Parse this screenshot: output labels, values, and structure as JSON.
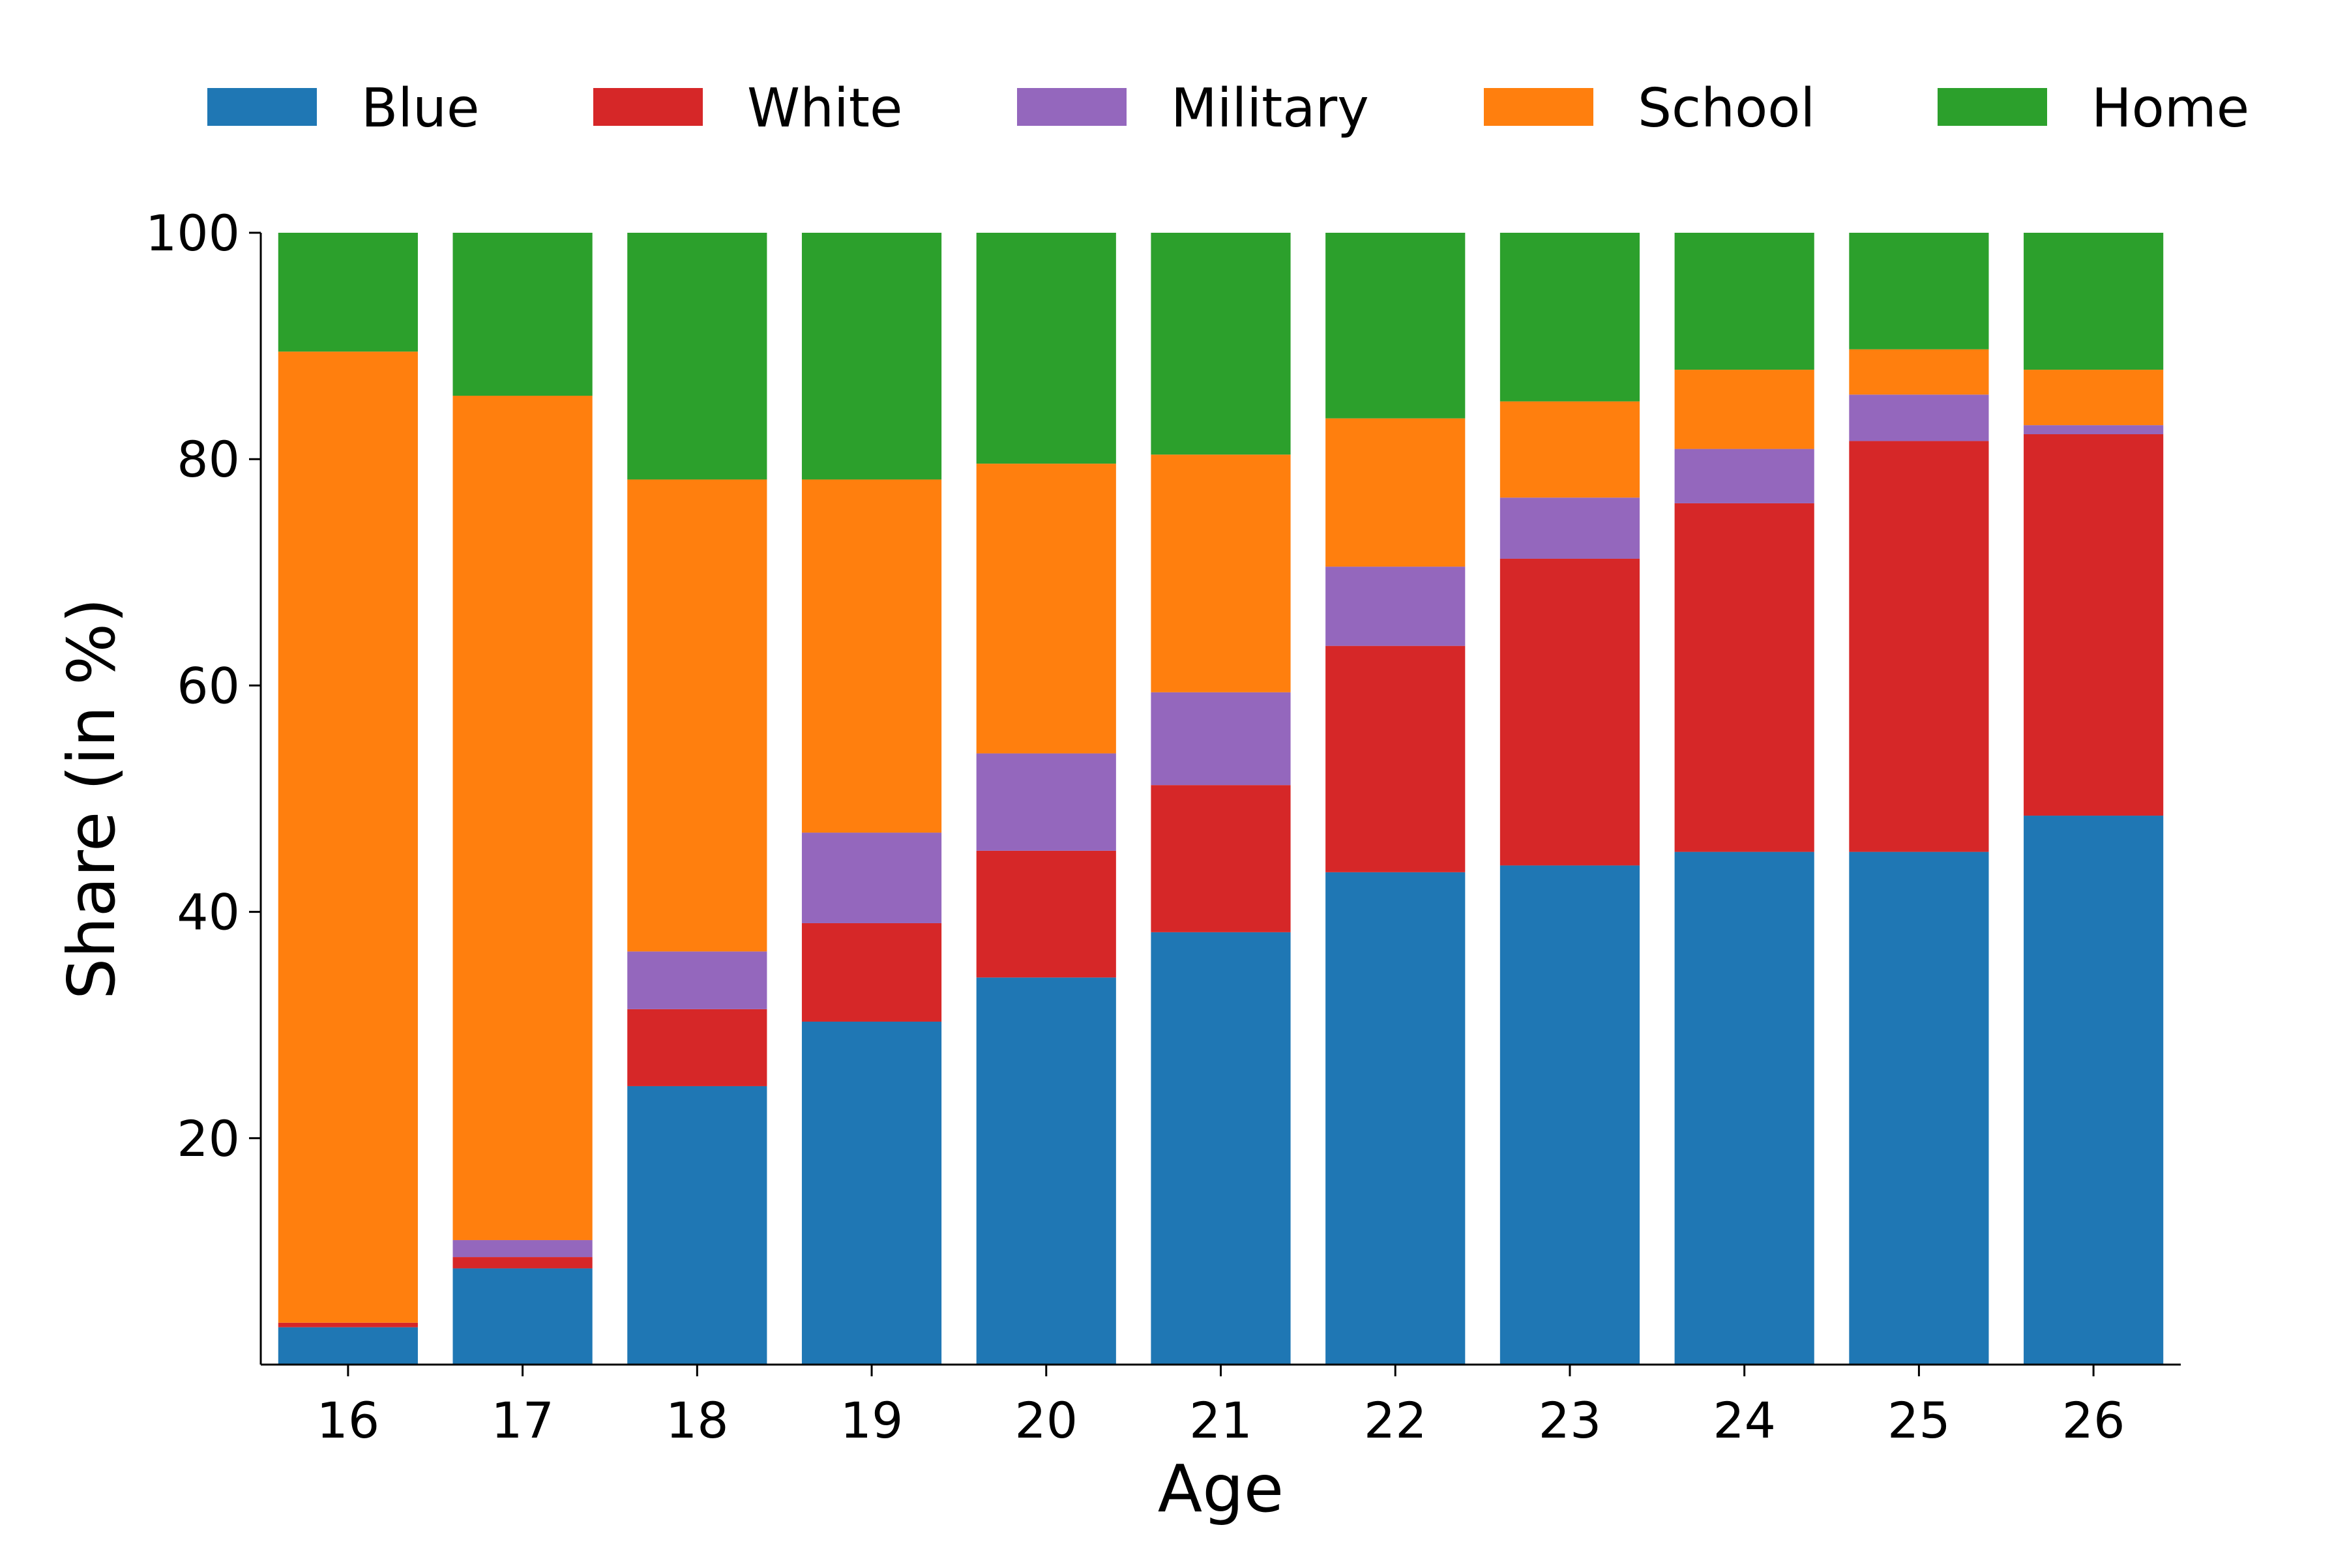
{
  "chart_data": {
    "type": "bar",
    "stacked": true,
    "xlabel": "Age",
    "ylabel": "Share (in %)",
    "ylim": [
      0,
      100
    ],
    "yticks": [
      20,
      40,
      60,
      80,
      100
    ],
    "grid": false,
    "legend_position": "top",
    "categories": [
      "16",
      "17",
      "18",
      "19",
      "20",
      "21",
      "22",
      "23",
      "24",
      "25",
      "26"
    ],
    "series": [
      {
        "name": "Blue",
        "color": "#1f77b4",
        "values": [
          3.3,
          8.5,
          24.6,
          30.3,
          34.2,
          38.2,
          43.5,
          44.1,
          45.3,
          45.3,
          48.5
        ]
      },
      {
        "name": "White",
        "color": "#d62728",
        "values": [
          0.4,
          1.0,
          6.8,
          8.7,
          11.2,
          13.0,
          20.0,
          27.1,
          30.8,
          36.3,
          33.7
        ]
      },
      {
        "name": "Military",
        "color": "#9467bd",
        "values": [
          0.0,
          1.5,
          5.1,
          8.0,
          8.6,
          8.2,
          7.0,
          5.4,
          4.8,
          4.1,
          0.8
        ]
      },
      {
        "name": "School",
        "color": "#ff7f0e",
        "values": [
          85.8,
          74.6,
          41.7,
          31.2,
          25.6,
          21.0,
          13.1,
          8.5,
          7.0,
          4.0,
          4.9
        ]
      },
      {
        "name": "Home",
        "color": "#2ca02c",
        "values": [
          10.5,
          14.4,
          21.8,
          21.8,
          20.4,
          19.6,
          16.4,
          14.9,
          12.1,
          10.3,
          12.1
        ]
      }
    ]
  }
}
